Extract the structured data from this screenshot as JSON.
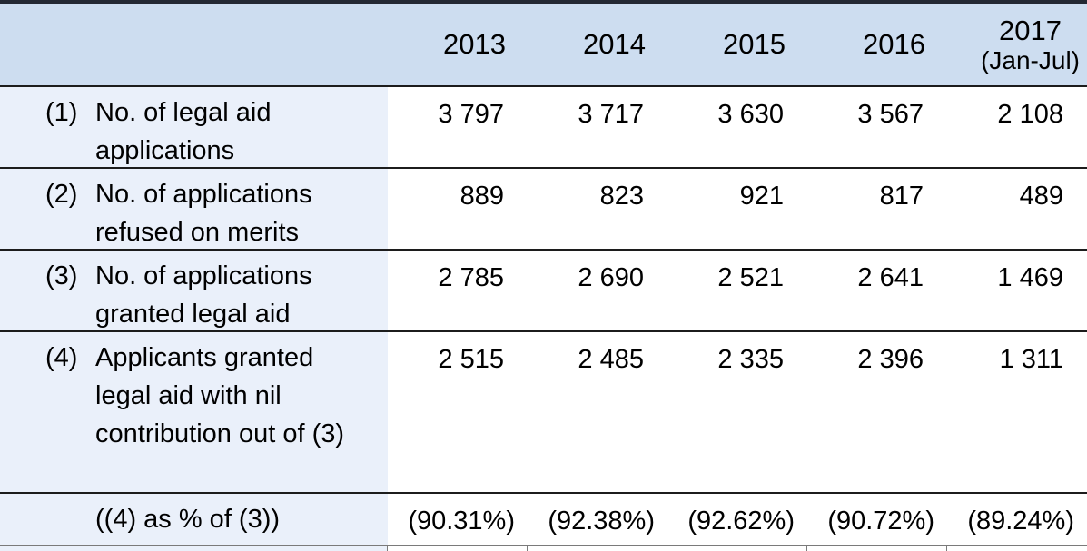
{
  "table": {
    "columns": [
      {
        "label": "2013"
      },
      {
        "label": "2014"
      },
      {
        "label": "2015"
      },
      {
        "label": "2016"
      },
      {
        "label": "2017",
        "sublabel": "(Jan-Jul)"
      }
    ],
    "rows": [
      {
        "num": "(1)",
        "label": "No. of legal aid applications",
        "values": [
          "3 797",
          "3 717",
          "3 630",
          "3 567",
          "2 108"
        ]
      },
      {
        "num": "(2)",
        "label": "No. of applications refused on merits",
        "values": [
          "889",
          "823",
          "921",
          "817",
          "489"
        ]
      },
      {
        "num": "(3)",
        "label": "No. of applications granted legal aid",
        "values": [
          "2 785",
          "2 690",
          "2 521",
          "2 641",
          "1 469"
        ]
      },
      {
        "num": "(4)",
        "label": "Applicants granted legal aid with nil contribution out of (3)",
        "values": [
          "2 515",
          "2 485",
          "2 335",
          "2 396",
          "1 311"
        ]
      },
      {
        "num": "",
        "label": "((4) as % of (3))",
        "values": [
          "(90.31%)",
          "(92.38%)",
          "(92.62%)",
          "(90.72%)",
          "(89.24%)"
        ]
      }
    ],
    "colors": {
      "header_bg": "#cdddf0",
      "label_bg": "#eaf0fa",
      "border_dark": "#1c1c1c",
      "border_top": "#232833",
      "border_gray": "#7a7a7a"
    }
  }
}
